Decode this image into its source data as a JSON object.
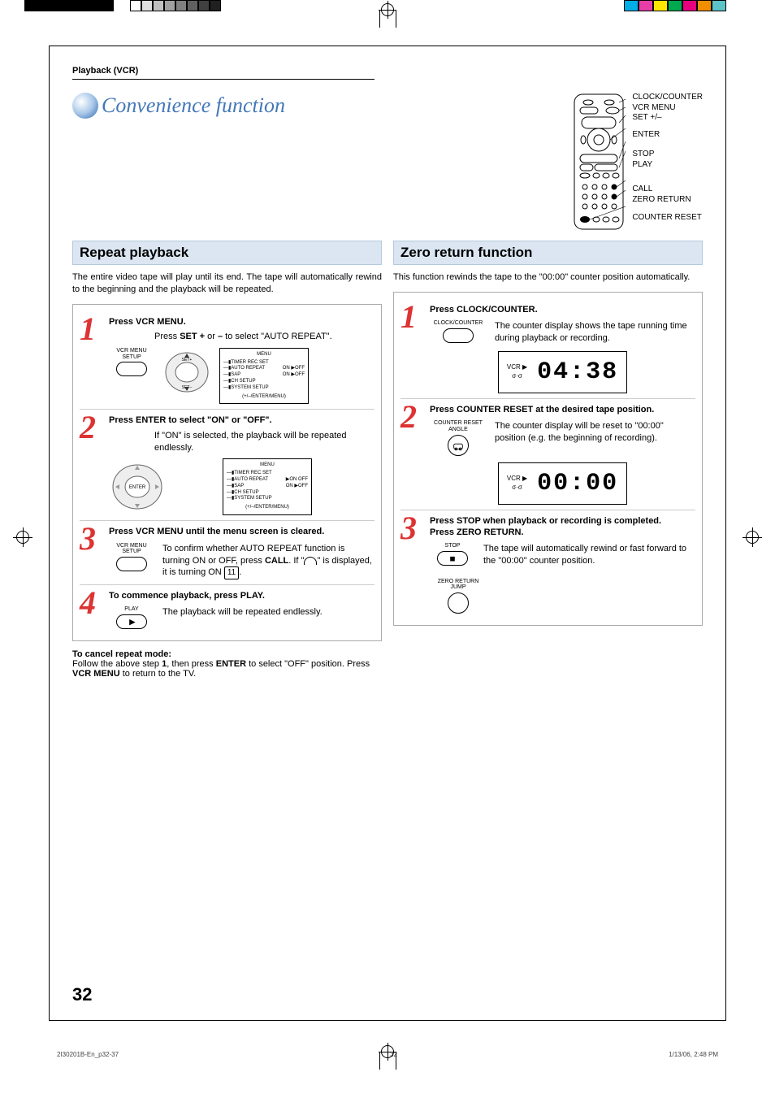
{
  "breadcrumb": "Playback (VCR)",
  "page_title": "Convenience function",
  "title_color": "#4478b8",
  "print_marks": {
    "grays": [
      "#ffffff",
      "#e0e0e0",
      "#c0c0c0",
      "#a0a0a0",
      "#808080",
      "#606060",
      "#404040",
      "#202020"
    ],
    "colors": [
      "#00aee6",
      "#e63ea6",
      "#ffe600",
      "#00a84f",
      "#e6007e",
      "#f18e00",
      "#5cc3c9"
    ]
  },
  "remote_labels": [
    "CLOCK/COUNTER",
    "VCR MENU",
    "SET +/–",
    "ENTER",
    "STOP",
    "PLAY",
    "",
    "CALL",
    "ZERO RETURN",
    "COUNTER RESET"
  ],
  "left": {
    "section_title": "Repeat playback",
    "intro": "The entire video tape will play until its end. The tape will automatically rewind to the beginning and the playback will be repeated.",
    "steps": [
      {
        "num": "1",
        "head": "Press VCR MENU.",
        "desc_pre": "Press ",
        "desc_bold1": "SET +",
        "desc_mid": " or ",
        "desc_bold2": "–",
        "desc_post": " to select \"AUTO REPEAT\".",
        "btn_label": "VCR MENU\nSETUP",
        "menu": {
          "title": "MENU",
          "rows": [
            {
              "l": "TIMER REC SET",
              "r": ""
            },
            {
              "l": "AUTO REPEAT",
              "r": "ON ▶OFF"
            },
            {
              "l": "SAP",
              "r": "ON ▶OFF"
            },
            {
              "l": "CH SETUP",
              "r": ""
            },
            {
              "l": "SYSTEM SETUP",
              "r": ""
            }
          ],
          "foot": "(+/–/ENTER/MENU)"
        }
      },
      {
        "num": "2",
        "head": "Press ENTER to select \"ON\" or \"OFF\".",
        "desc": "If \"ON\" is selected, the playback will be repeated endlessly.",
        "dial_label": "ENTER",
        "menu": {
          "title": "MENU",
          "rows": [
            {
              "l": "TIMER REC SET",
              "r": ""
            },
            {
              "l": "AUTO REPEAT",
              "r": "▶ON  OFF"
            },
            {
              "l": "SAP",
              "r": "ON ▶OFF"
            },
            {
              "l": "CH SETUP",
              "r": ""
            },
            {
              "l": "SYSTEM SETUP",
              "r": ""
            }
          ],
          "foot": "(+/–/ENTER/MENU)"
        }
      },
      {
        "num": "3",
        "head": "Press VCR MENU until the menu screen is cleared.",
        "desc_pre": "To confirm whether AUTO REPEAT function is turning ON or OFF, press ",
        "desc_bold": "CALL",
        "desc_mid": ". If \"",
        "desc_post": "\" is displayed, it is turning ON ",
        "ref": "11",
        "desc_end": ".",
        "btn_label": "VCR MENU\nSETUP"
      },
      {
        "num": "4",
        "head": "To commence playback, press PLAY.",
        "desc": "The playback will be repeated endlessly.",
        "btn_label": "PLAY"
      }
    ],
    "cancel": {
      "head": "To cancel repeat mode:",
      "body_pre": "Follow the above step ",
      "body_b1": "1",
      "body_mid1": ", then press ",
      "body_b2": "ENTER",
      "body_mid2": " to select \"OFF\" position. Press ",
      "body_b3": "VCR MENU",
      "body_end": " to return to the TV."
    }
  },
  "right": {
    "section_title": "Zero return function",
    "intro": "This function rewinds the tape to the \"00:00\" counter position automatically.",
    "steps": [
      {
        "num": "1",
        "head": "Press CLOCK/COUNTER.",
        "desc": "The counter display shows the tape running time during playback or recording.",
        "btn_label": "CLOCK/COUNTER",
        "display": {
          "meta1": "VCR ▶",
          "meta2": "σ·σ",
          "digits": "04:38"
        }
      },
      {
        "num": "2",
        "head": "Press COUNTER RESET at the desired tape position.",
        "desc": "The counter display will be reset to \"00:00\" position (e.g. the beginning of recording).",
        "btn_label": "COUNTER RESET\nANGLE",
        "display": {
          "meta1": "VCR ▶",
          "meta2": "σ·σ",
          "digits": "00:00"
        }
      },
      {
        "num": "3",
        "head": "Press STOP when playback or recording is completed.\nPress ZERO RETURN.",
        "desc": "The tape will automatically rewind or fast forward to the \"00:00\" counter position.",
        "btn1_label": "STOP",
        "btn2_label": "ZERO RETURN\nJUMP"
      }
    ]
  },
  "page_number": "32",
  "footer": {
    "file": "2I30201B-En_p32-37",
    "page": "32",
    "date": "1/13/06, 2:48 PM"
  }
}
